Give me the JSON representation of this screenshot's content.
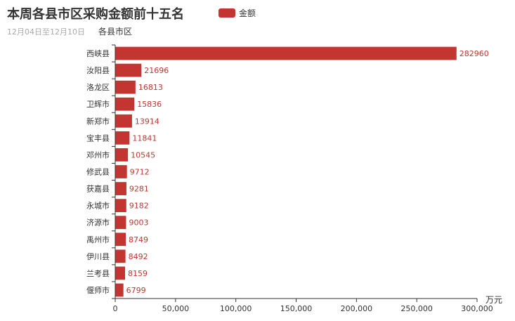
{
  "title": "本周各县市区采购金额前十五名",
  "subtitle": "12月04日至12月10日",
  "legend": {
    "label": "金额",
    "color": "#c23531"
  },
  "chart_data": {
    "type": "bar",
    "orientation": "horizontal",
    "categories": [
      "西峡县",
      "汝阳县",
      "洛龙区",
      "卫辉市",
      "新郑市",
      "宝丰县",
      "邓州市",
      "修武县",
      "获嘉县",
      "永城市",
      "济源市",
      "禹州市",
      "伊川县",
      "兰考县",
      "偃师市"
    ],
    "series": [
      {
        "name": "金额",
        "values": [
          282960,
          21696,
          16813,
          15836,
          13914,
          11841,
          10545,
          9712,
          9281,
          9182,
          9003,
          8749,
          8492,
          8159,
          6799
        ]
      }
    ],
    "xlabel": "万元",
    "ylabel": "各县市区",
    "xlim": [
      0,
      300000
    ],
    "xticks": [
      "0",
      "50,000",
      "100,000",
      "150,000",
      "200,000",
      "250,000",
      "300,000"
    ],
    "grid": false,
    "legend_position": "top",
    "bar_color": "#c23531",
    "label_color": "#c23531"
  }
}
